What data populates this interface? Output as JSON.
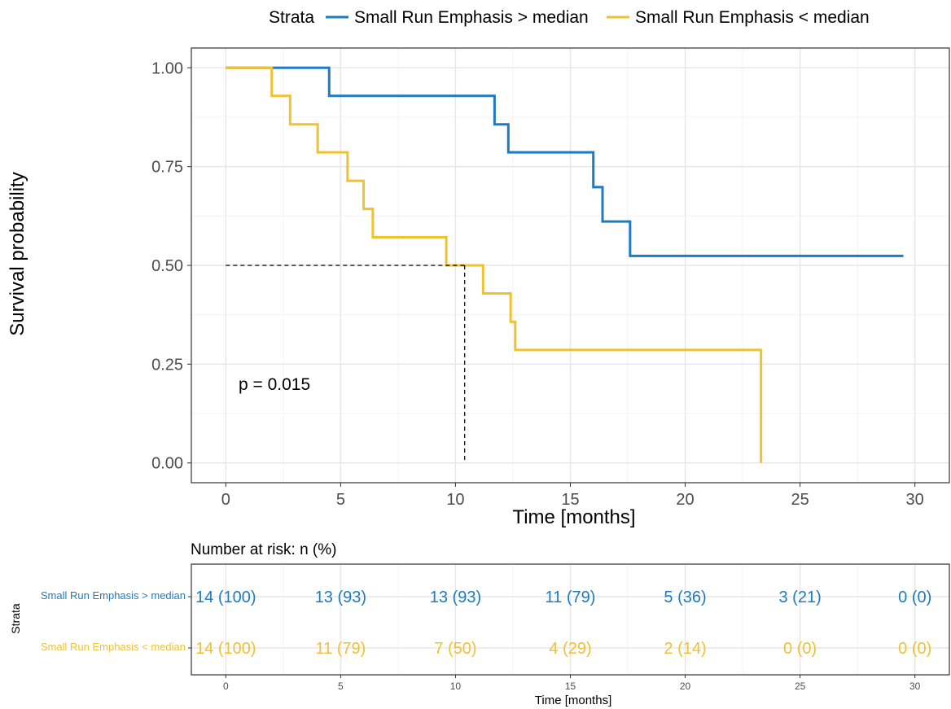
{
  "chart_data": [
    {
      "type": "line",
      "subtype": "kaplan-meier",
      "xlabel": "Time [months]",
      "ylabel": "Survival probability",
      "xlim": [
        -1.5,
        31.5
      ],
      "ylim": [
        -0.05,
        1.05
      ],
      "x_ticks": [
        0,
        5,
        10,
        15,
        20,
        25,
        30
      ],
      "y_ticks": [
        0.0,
        0.25,
        0.5,
        0.75,
        1.0
      ],
      "y_tick_labels": [
        "0.00",
        "0.25",
        "0.50",
        "0.75",
        "1.00"
      ],
      "grid": true,
      "legend": {
        "title": "Strata",
        "position": "top",
        "entries": [
          "Small Run Emphasis > median",
          "Small Run Emphasis < median"
        ]
      },
      "annotation": "p = 0.015",
      "median_line": {
        "y": 0.5,
        "x": 10.4
      },
      "series": [
        {
          "name": "Small Run Emphasis > median",
          "color": "#1f7bbf",
          "steps": [
            [
              0,
              1.0
            ],
            [
              4.5,
              0.929
            ],
            [
              11.7,
              0.857
            ],
            [
              12.3,
              0.786
            ],
            [
              16.0,
              0.698
            ],
            [
              16.4,
              0.611
            ],
            [
              17.6,
              0.524
            ],
            [
              29.5,
              0.524
            ]
          ]
        },
        {
          "name": "Small Run Emphasis < median",
          "color": "#efc232",
          "steps": [
            [
              0,
              1.0
            ],
            [
              2.0,
              0.929
            ],
            [
              2.8,
              0.857
            ],
            [
              4.0,
              0.786
            ],
            [
              5.3,
              0.714
            ],
            [
              6.0,
              0.643
            ],
            [
              6.4,
              0.571
            ],
            [
              9.6,
              0.5
            ],
            [
              11.2,
              0.429
            ],
            [
              12.4,
              0.357
            ],
            [
              12.6,
              0.286
            ],
            [
              23.3,
              0.0
            ]
          ]
        }
      ]
    },
    {
      "type": "table",
      "title": "Number at risk: n (%)",
      "xlabel": "Time [months]",
      "ylabel": "Strata",
      "x_ticks": [
        0,
        5,
        10,
        15,
        20,
        25,
        30
      ],
      "rows": [
        {
          "label": "Small Run Emphasis > median",
          "color": "#1f7bbf",
          "values": [
            "14 (100)",
            "13 (93)",
            "13 (93)",
            "11 (79)",
            "5 (36)",
            "3 (21)",
            "0 (0)"
          ]
        },
        {
          "label": "Small Run Emphasis < median",
          "color": "#efc232",
          "values": [
            "14 (100)",
            "11 (79)",
            "7 (50)",
            "4 (29)",
            "2 (14)",
            "0 (0)",
            "0 (0)"
          ]
        }
      ]
    }
  ]
}
